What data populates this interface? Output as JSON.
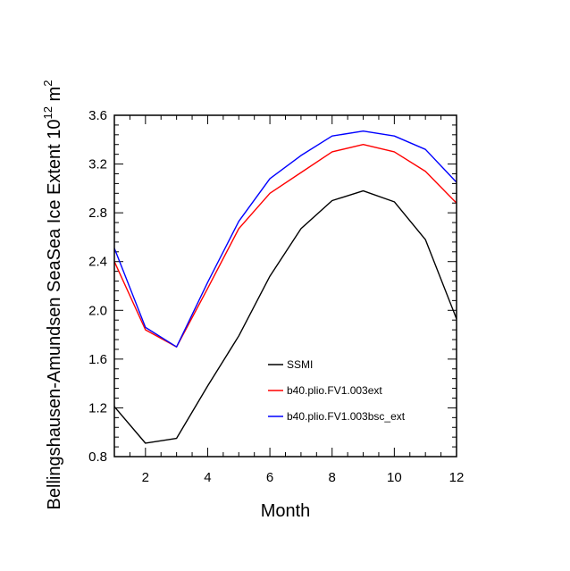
{
  "chart_data": {
    "type": "line",
    "xlabel": "Month",
    "ylabel": "Bellingshausen-Amundsen SeaSea Ice Extent 10",
    "ylabel_exponent": "12",
    "ylabel_unit": " m",
    "ylabel_unit_exponent": "2",
    "xlim": [
      1,
      12
    ],
    "ylim": [
      0.8,
      3.6
    ],
    "x_ticks": [
      2,
      4,
      6,
      8,
      10,
      12
    ],
    "y_ticks": [
      0.8,
      1.2,
      1.6,
      2.0,
      2.4,
      2.8,
      3.2,
      3.6
    ],
    "x_tick_labels": [
      "2",
      "4",
      "6",
      "8",
      "10",
      "12"
    ],
    "y_tick_labels": [
      "0.8",
      "1.2",
      "1.6",
      "2.0",
      "2.4",
      "2.8",
      "3.2",
      "3.6"
    ],
    "x": [
      1,
      2,
      3,
      4,
      5,
      6,
      7,
      8,
      9,
      10,
      11,
      12
    ],
    "series": [
      {
        "name": "SSMI",
        "color": "#000000",
        "values": [
          1.21,
          0.91,
          0.95,
          1.38,
          1.79,
          2.28,
          2.67,
          2.9,
          2.98,
          2.89,
          2.58,
          1.93
        ]
      },
      {
        "name": "b40.plio.FV1.003ext",
        "color": "#ff0000",
        "values": [
          2.4,
          1.84,
          1.7,
          2.18,
          2.67,
          2.96,
          3.13,
          3.3,
          3.36,
          3.3,
          3.14,
          2.88
        ]
      },
      {
        "name": "b40.plio.FV1.003bsc_ext",
        "color": "#0000ff",
        "values": [
          2.51,
          1.86,
          1.7,
          2.23,
          2.73,
          3.08,
          3.27,
          3.43,
          3.47,
          3.43,
          3.32,
          3.05
        ]
      }
    ],
    "legend_position": "lower-center"
  }
}
